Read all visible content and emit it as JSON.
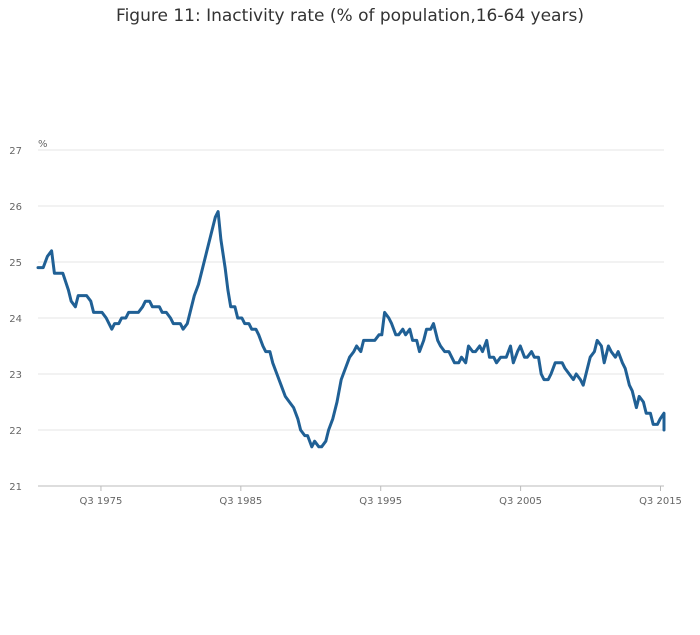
{
  "chart_data": {
    "type": "line",
    "title": "Figure 11: Inactivity rate (% of population,16-64 years)",
    "ylabel": "%",
    "xlabel": "",
    "ylim": [
      21,
      27
    ],
    "yticks": [
      21,
      22,
      23,
      24,
      25,
      26,
      27
    ],
    "xlim": [
      1971.125,
      2015.875
    ],
    "xticks": [
      {
        "label": "Q3 1975",
        "value": 1975.625
      },
      {
        "label": "Q3 1985",
        "value": 1985.625
      },
      {
        "label": "Q3 1995",
        "value": 1995.625
      },
      {
        "label": "Q3 2005",
        "value": 2005.625
      },
      {
        "label": "Q3 2015",
        "value": 2015.625
      }
    ],
    "grid": true,
    "series": [
      {
        "name": "Inactivity rate",
        "color": "#206095",
        "points": [
          [
            1971.125,
            24.9
          ],
          [
            1971.5,
            24.9
          ],
          [
            1971.8,
            25.1
          ],
          [
            1972.1,
            25.2
          ],
          [
            1972.3,
            24.8
          ],
          [
            1972.9,
            24.8
          ],
          [
            1973.3,
            24.5
          ],
          [
            1973.5,
            24.3
          ],
          [
            1973.8,
            24.2
          ],
          [
            1974.0,
            24.4
          ],
          [
            1974.6,
            24.4
          ],
          [
            1974.9,
            24.3
          ],
          [
            1975.1,
            24.1
          ],
          [
            1975.7,
            24.1
          ],
          [
            1976.0,
            24.0
          ],
          [
            1976.4,
            23.8
          ],
          [
            1976.6,
            23.9
          ],
          [
            1976.9,
            23.9
          ],
          [
            1977.1,
            24.0
          ],
          [
            1977.4,
            24.0
          ],
          [
            1977.6,
            24.1
          ],
          [
            1978.3,
            24.1
          ],
          [
            1978.6,
            24.2
          ],
          [
            1978.8,
            24.3
          ],
          [
            1979.1,
            24.3
          ],
          [
            1979.3,
            24.2
          ],
          [
            1979.8,
            24.2
          ],
          [
            1980.0,
            24.1
          ],
          [
            1980.3,
            24.1
          ],
          [
            1980.6,
            24.0
          ],
          [
            1980.8,
            23.9
          ],
          [
            1981.3,
            23.9
          ],
          [
            1981.5,
            23.8
          ],
          [
            1981.8,
            23.9
          ],
          [
            1982.0,
            24.1
          ],
          [
            1982.3,
            24.4
          ],
          [
            1982.6,
            24.6
          ],
          [
            1982.9,
            24.9
          ],
          [
            1983.2,
            25.2
          ],
          [
            1983.5,
            25.5
          ],
          [
            1983.8,
            25.8
          ],
          [
            1984.0,
            25.9
          ],
          [
            1984.2,
            25.4
          ],
          [
            1984.5,
            24.9
          ],
          [
            1984.7,
            24.5
          ],
          [
            1984.9,
            24.2
          ],
          [
            1985.2,
            24.2
          ],
          [
            1985.4,
            24.0
          ],
          [
            1985.7,
            24.0
          ],
          [
            1985.9,
            23.9
          ],
          [
            1986.2,
            23.9
          ],
          [
            1986.4,
            23.8
          ],
          [
            1986.7,
            23.8
          ],
          [
            1986.9,
            23.7
          ],
          [
            1987.2,
            23.5
          ],
          [
            1987.4,
            23.4
          ],
          [
            1987.7,
            23.4
          ],
          [
            1987.9,
            23.2
          ],
          [
            1988.2,
            23.0
          ],
          [
            1988.5,
            22.8
          ],
          [
            1988.8,
            22.6
          ],
          [
            1989.1,
            22.5
          ],
          [
            1989.4,
            22.4
          ],
          [
            1989.7,
            22.2
          ],
          [
            1989.9,
            22.0
          ],
          [
            1990.2,
            21.9
          ],
          [
            1990.4,
            21.9
          ],
          [
            1990.7,
            21.7
          ],
          [
            1990.9,
            21.8
          ],
          [
            1991.2,
            21.7
          ],
          [
            1991.4,
            21.7
          ],
          [
            1991.7,
            21.8
          ],
          [
            1991.9,
            22.0
          ],
          [
            1992.2,
            22.2
          ],
          [
            1992.5,
            22.5
          ],
          [
            1992.8,
            22.9
          ],
          [
            1993.1,
            23.1
          ],
          [
            1993.4,
            23.3
          ],
          [
            1993.7,
            23.4
          ],
          [
            1993.9,
            23.5
          ],
          [
            1994.2,
            23.4
          ],
          [
            1994.4,
            23.6
          ],
          [
            1994.7,
            23.6
          ],
          [
            1995.2,
            23.6
          ],
          [
            1995.5,
            23.7
          ],
          [
            1995.7,
            23.7
          ],
          [
            1995.9,
            24.1
          ],
          [
            1996.2,
            24.0
          ],
          [
            1996.4,
            23.9
          ],
          [
            1996.7,
            23.7
          ],
          [
            1996.9,
            23.7
          ],
          [
            1997.2,
            23.8
          ],
          [
            1997.4,
            23.7
          ],
          [
            1997.7,
            23.8
          ],
          [
            1997.9,
            23.6
          ],
          [
            1998.2,
            23.6
          ],
          [
            1998.4,
            23.4
          ],
          [
            1998.7,
            23.6
          ],
          [
            1998.9,
            23.8
          ],
          [
            1999.2,
            23.8
          ],
          [
            1999.4,
            23.9
          ],
          [
            1999.7,
            23.6
          ],
          [
            1999.9,
            23.5
          ],
          [
            2000.2,
            23.4
          ],
          [
            2000.5,
            23.4
          ],
          [
            2000.7,
            23.3
          ],
          [
            2000.9,
            23.2
          ],
          [
            2001.2,
            23.2
          ],
          [
            2001.4,
            23.3
          ],
          [
            2001.7,
            23.2
          ],
          [
            2001.9,
            23.5
          ],
          [
            2002.2,
            23.4
          ],
          [
            2002.4,
            23.4
          ],
          [
            2002.7,
            23.5
          ],
          [
            2002.9,
            23.4
          ],
          [
            2003.2,
            23.6
          ],
          [
            2003.4,
            23.3
          ],
          [
            2003.7,
            23.3
          ],
          [
            2003.9,
            23.2
          ],
          [
            2004.2,
            23.3
          ],
          [
            2004.6,
            23.3
          ],
          [
            2004.9,
            23.5
          ],
          [
            2005.1,
            23.2
          ],
          [
            2005.4,
            23.4
          ],
          [
            2005.6,
            23.5
          ],
          [
            2005.9,
            23.3
          ],
          [
            2006.1,
            23.3
          ],
          [
            2006.4,
            23.4
          ],
          [
            2006.6,
            23.3
          ],
          [
            2006.9,
            23.3
          ],
          [
            2007.1,
            23.0
          ],
          [
            2007.3,
            22.9
          ],
          [
            2007.6,
            22.9
          ],
          [
            2007.8,
            23.0
          ],
          [
            2008.1,
            23.2
          ],
          [
            2008.6,
            23.2
          ],
          [
            2008.8,
            23.1
          ],
          [
            2009.1,
            23.0
          ],
          [
            2009.4,
            22.9
          ],
          [
            2009.6,
            23.0
          ],
          [
            2009.9,
            22.9
          ],
          [
            2010.1,
            22.8
          ],
          [
            2010.4,
            23.1
          ],
          [
            2010.6,
            23.3
          ],
          [
            2010.9,
            23.4
          ],
          [
            2011.1,
            23.6
          ],
          [
            2011.4,
            23.5
          ],
          [
            2011.6,
            23.2
          ],
          [
            2011.9,
            23.5
          ],
          [
            2012.1,
            23.4
          ],
          [
            2012.4,
            23.3
          ],
          [
            2012.6,
            23.4
          ],
          [
            2012.9,
            23.2
          ],
          [
            2013.1,
            23.1
          ],
          [
            2013.4,
            22.8
          ],
          [
            2013.6,
            22.7
          ],
          [
            2013.9,
            22.4
          ],
          [
            2014.1,
            22.6
          ],
          [
            2014.4,
            22.5
          ],
          [
            2014.6,
            22.3
          ],
          [
            2014.9,
            22.3
          ],
          [
            2015.1,
            22.1
          ],
          [
            2015.4,
            22.1
          ],
          [
            2015.6,
            22.2
          ],
          [
            2015.9,
            22.3
          ],
          [
            2016.1,
            22.1
          ],
          [
            2016.4,
            22.1
          ],
          [
            2016.6,
            22.0
          ]
        ]
      }
    ]
  }
}
